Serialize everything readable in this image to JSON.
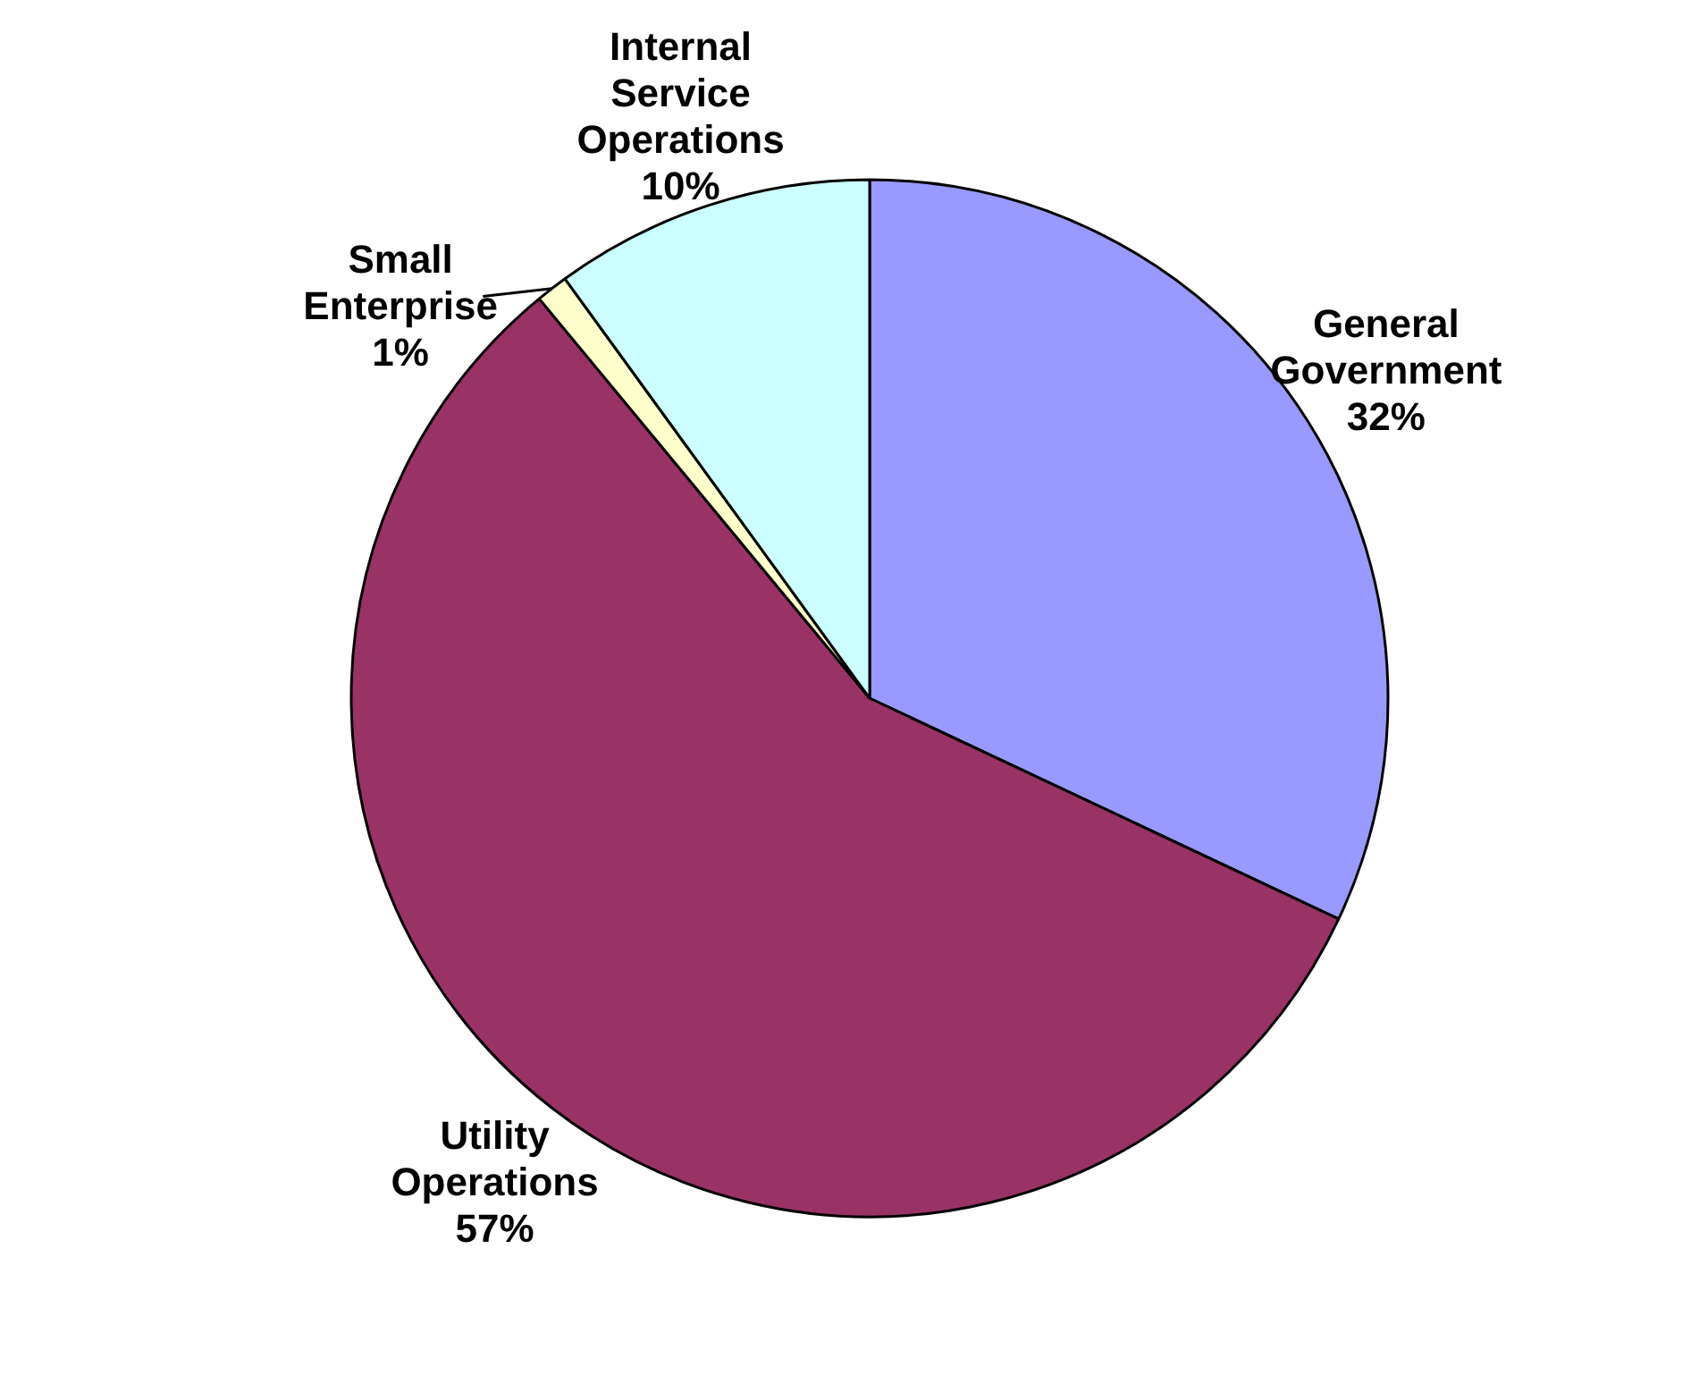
{
  "chart_data": {
    "type": "pie",
    "categories": [
      "General Government",
      "Utility Operations",
      "Small Enterprise",
      "Internal Service Operations"
    ],
    "values": [
      32,
      57,
      1,
      10
    ],
    "value_labels": [
      "32%",
      "57%",
      "1%",
      "10%"
    ],
    "colors": [
      "#9999ff",
      "#993366",
      "#ffffcc",
      "#ccffff"
    ]
  }
}
